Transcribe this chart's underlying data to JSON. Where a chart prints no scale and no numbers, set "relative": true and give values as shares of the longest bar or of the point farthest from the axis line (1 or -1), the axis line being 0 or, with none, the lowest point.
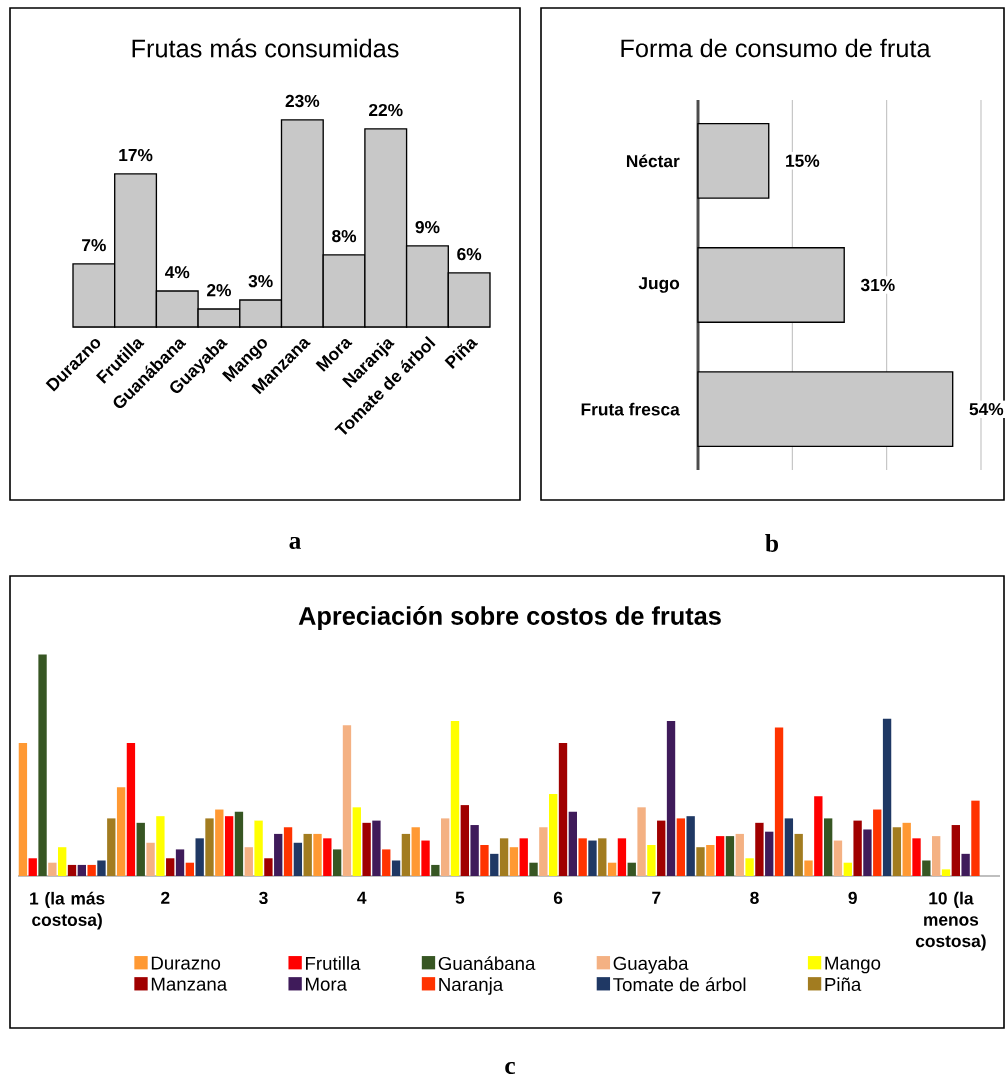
{
  "chart_data": [
    {
      "type": "bar",
      "title": "Frutas más consumidas",
      "categories": [
        "Durazno",
        "Frutilla",
        "Guanábana",
        "Guayaba",
        "Mango",
        "Manzana",
        "Mora",
        "Naranja",
        "Tomate de árbol",
        "Piña"
      ],
      "values": [
        7,
        17,
        4,
        2,
        3,
        23,
        8,
        22,
        9,
        6
      ],
      "value_labels": [
        "7%",
        "17%",
        "4%",
        "2%",
        "3%",
        "23%",
        "8%",
        "22%",
        "9%",
        "6%"
      ],
      "color": "#c8c8c8",
      "annotations": [
        "a"
      ]
    },
    {
      "type": "bar",
      "orientation": "horizontal",
      "title": "Forma de consumo de fruta",
      "categories": [
        "Néctar",
        "Jugo",
        "Fruta fresca"
      ],
      "values": [
        15,
        31,
        54
      ],
      "value_labels": [
        "15%",
        "31%",
        "54%"
      ],
      "color": "#c8c8c8",
      "xlim": [
        0,
        60
      ],
      "xticks": [
        {
          "value": 0,
          "label": null
        },
        {
          "value": 20,
          "label": null
        },
        {
          "value": 40,
          "label": null
        },
        {
          "value": 60,
          "label": null
        }
      ],
      "grid": "x",
      "tick_labels": "y",
      "annotations": [
        "b"
      ]
    },
    {
      "type": "bar",
      "title": "Apreciación sobre costos de frutas",
      "relative": true,
      "legend": "bottom",
      "categories": [
        "1 (la más costosa)",
        "2",
        "3",
        "4",
        "5",
        "6",
        "7",
        "8",
        "9",
        "10 (la menos costosa)"
      ],
      "annotations": [
        "c"
      ],
      "series": [
        {
          "name": "Durazno",
          "color": "#ff9933",
          "values": [
            0.6,
            0.4,
            0.3,
            0.19,
            0.22,
            0.13,
            0.06,
            0.14,
            0.07,
            0.24
          ]
        },
        {
          "name": "Frutilla",
          "color": "#ff0000",
          "values": [
            0.08,
            0.6,
            0.27,
            0.17,
            0.16,
            0.17,
            0.17,
            0.18,
            0.36,
            0.17
          ]
        },
        {
          "name": "Guanábana",
          "color": "#375623",
          "values": [
            1,
            0.24,
            0.29,
            0.12,
            0.05,
            0.06,
            0.06,
            0.18,
            0.26,
            0.07
          ]
        },
        {
          "name": "Guayaba",
          "color": "#f4b183",
          "values": [
            0.06,
            0.15,
            0.13,
            0.68,
            0.26,
            0.22,
            0.31,
            0.19,
            0.16,
            0.18
          ]
        },
        {
          "name": "Mango",
          "color": "#ffff00",
          "values": [
            0.13,
            0.27,
            0.25,
            0.31,
            0.7,
            0.37,
            0.14,
            0.08,
            0.06,
            0.03
          ]
        },
        {
          "name": "Manzana",
          "color": "#a00000",
          "values": [
            0.05,
            0.08,
            0.08,
            0.24,
            0.32,
            0.6,
            0.25,
            0.24,
            0.25,
            0.23
          ]
        },
        {
          "name": "Mora",
          "color": "#3f1b5a",
          "values": [
            0.05,
            0.12,
            0.19,
            0.25,
            0.23,
            0.29,
            0.7,
            0.2,
            0.21,
            0.1
          ]
        },
        {
          "name": "Naranja",
          "color": "#ff3300",
          "values": [
            0.05,
            0.06,
            0.22,
            0.12,
            0.14,
            0.17,
            0.26,
            0.67,
            0.3,
            0.34
          ]
        },
        {
          "name": "Tomate de árbol",
          "color": "#1f3864",
          "values": [
            0.07,
            0.17,
            0.15,
            0.07,
            0.1,
            0.16,
            0.27,
            0.26,
            0.71,
            null
          ]
        },
        {
          "name": "Piña",
          "color": "#a27c20",
          "values": [
            0.26,
            0.26,
            0.19,
            0.19,
            0.17,
            0.17,
            0.13,
            0.19,
            0.22,
            null
          ]
        }
      ]
    }
  ]
}
